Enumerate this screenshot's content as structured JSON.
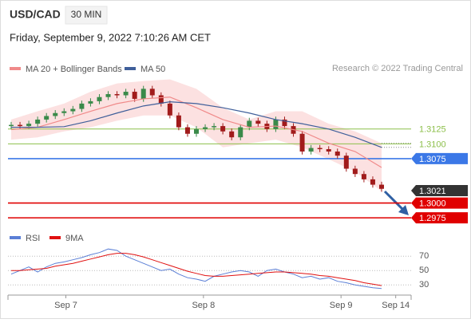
{
  "chart_data": {
    "type": "candlestick",
    "symbol": "USD/CAD",
    "timeframe": "30 MIN",
    "subtitle": "Friday, September 9, 2022 7:10:26 AM CET",
    "credit": "Research © 2022 Trading Central",
    "up_color": "#3a8a4a",
    "down_color": "#a11b1b",
    "ylim": [
      1.2959,
      1.3215
    ],
    "open": [
      1.313,
      1.3132,
      1.313,
      1.3134,
      1.3141,
      1.3147,
      1.3152,
      1.3155,
      1.3159,
      1.3168,
      1.3172,
      1.3179,
      1.3184,
      1.3182,
      1.3188,
      1.3176,
      1.3193,
      1.3182,
      1.3168,
      1.3148,
      1.3128,
      1.3117,
      1.3125,
      1.3128,
      1.313,
      1.3121,
      1.3111,
      1.3128,
      1.3139,
      1.3134,
      1.3125,
      1.3141,
      1.313,
      1.3117,
      1.3087,
      1.3093,
      1.3091,
      1.3087,
      1.308,
      1.3058,
      1.3049,
      1.304,
      1.3031
    ],
    "high": [
      1.3137,
      1.3137,
      1.3139,
      1.3146,
      1.3152,
      1.3157,
      1.316,
      1.3164,
      1.3173,
      1.3177,
      1.3184,
      1.3189,
      1.3189,
      1.3193,
      1.3193,
      1.3198,
      1.3198,
      1.3187,
      1.3173,
      1.3153,
      1.3133,
      1.313,
      1.3133,
      1.3135,
      1.3135,
      1.3126,
      1.3133,
      1.3144,
      1.3144,
      1.3139,
      1.3146,
      1.3146,
      1.3135,
      1.3122,
      1.3098,
      1.3098,
      1.3096,
      1.3092,
      1.3085,
      1.3063,
      1.3054,
      1.3045,
      1.3036
    ],
    "low": [
      1.3125,
      1.3125,
      1.3125,
      1.3129,
      1.3136,
      1.3142,
      1.3147,
      1.315,
      1.3154,
      1.3163,
      1.3167,
      1.3174,
      1.3177,
      1.3177,
      1.3171,
      1.3171,
      1.3177,
      1.3163,
      1.3143,
      1.3123,
      1.3112,
      1.3112,
      1.312,
      1.3123,
      1.3116,
      1.3106,
      1.3106,
      1.3123,
      1.3129,
      1.312,
      1.312,
      1.3125,
      1.3112,
      1.3082,
      1.3082,
      1.3086,
      1.3082,
      1.3075,
      1.3053,
      1.3044,
      1.3035,
      1.3026,
      1.3019
    ],
    "close": [
      1.3132,
      1.313,
      1.3134,
      1.3141,
      1.3147,
      1.3152,
      1.3155,
      1.3159,
      1.3168,
      1.3172,
      1.3179,
      1.3184,
      1.3182,
      1.3188,
      1.3176,
      1.3193,
      1.3182,
      1.3168,
      1.3148,
      1.3128,
      1.3117,
      1.3125,
      1.3128,
      1.313,
      1.3121,
      1.3111,
      1.3128,
      1.3139,
      1.3134,
      1.3125,
      1.3141,
      1.313,
      1.3117,
      1.3087,
      1.3093,
      1.3091,
      1.3087,
      1.308,
      1.3058,
      1.3049,
      1.304,
      1.3031,
      1.3024
    ],
    "overlay_x": [
      0,
      3,
      6,
      9,
      12,
      15,
      18,
      21,
      24,
      27,
      30,
      33,
      36,
      39,
      42
    ],
    "overlays": [
      {
        "name": "MA 20 + Bollinger Bands",
        "color": "#f08a8a",
        "values": [
          1.3124,
          1.3128,
          1.3141,
          1.3155,
          1.3168,
          1.3176,
          1.3179,
          1.3161,
          1.3141,
          1.3128,
          1.313,
          1.3121,
          1.3101,
          1.3087,
          1.306
        ],
        "upper": [
          1.3141,
          1.3155,
          1.3168,
          1.3188,
          1.3202,
          1.3206,
          1.3209,
          1.3193,
          1.3161,
          1.3141,
          1.3155,
          1.3155,
          1.3134,
          1.3121,
          1.3101
        ],
        "lower": [
          1.3107,
          1.3111,
          1.3121,
          1.3128,
          1.3139,
          1.3148,
          1.3148,
          1.3128,
          1.3094,
          1.3101,
          1.3107,
          1.3094,
          1.3074,
          1.3053,
          1.302
        ]
      },
      {
        "name": "MA 50",
        "color": "#3f5f9a",
        "values": [
          1.3128,
          1.3128,
          1.3129,
          1.3139,
          1.3152,
          1.3164,
          1.3171,
          1.3168,
          1.3161,
          1.3152,
          1.3141,
          1.3134,
          1.3125,
          1.3111,
          1.3094
        ]
      }
    ],
    "levels": [
      {
        "value": 1.3125,
        "color": "#8cbf4a",
        "boxed": false
      },
      {
        "value": 1.31,
        "label": "1.3100",
        "color": "#8cbf4a",
        "boxed": false
      },
      {
        "value": 1.3075,
        "color": "#3b78e7",
        "boxed": true
      },
      {
        "value": 1.3021,
        "color": "#333333",
        "boxed": true,
        "line": false
      },
      {
        "value": 1.3,
        "label": "1.3000",
        "color": "#e00000",
        "boxed": true
      },
      {
        "value": 1.2975,
        "color": "#e00000",
        "boxed": true
      }
    ],
    "xticks": [
      {
        "value": 6.2,
        "label": "Sep 7"
      },
      {
        "value": 21.8,
        "label": "Sep 8"
      },
      {
        "value": 37.4,
        "label": "Sep 9"
      },
      {
        "value": 43.6,
        "label": "Sep 14"
      }
    ],
    "rsi": {
      "ylim": [
        18,
        88
      ],
      "yticks": [
        70,
        50,
        30
      ],
      "series": [
        {
          "name": "RSI",
          "color": "#5b7fd6",
          "values": [
            45,
            50,
            55,
            48,
            55,
            60,
            62,
            65,
            68,
            72,
            75,
            80,
            78,
            70,
            65,
            60,
            55,
            50,
            52,
            45,
            40,
            38,
            35,
            42,
            45,
            48,
            50,
            48,
            42,
            50,
            52,
            48,
            45,
            40,
            42,
            38,
            40,
            35,
            33,
            30,
            28,
            26,
            25
          ]
        },
        {
          "name": "9MA",
          "color": "#e01010",
          "values": [
            50,
            50,
            51,
            52,
            53,
            56,
            58,
            60,
            63,
            66,
            69,
            72,
            74,
            74,
            72,
            69,
            65,
            61,
            57,
            53,
            49,
            46,
            43,
            42,
            42,
            43,
            44,
            45,
            46,
            47,
            48,
            48,
            47,
            46,
            45,
            43,
            42,
            40,
            38,
            36,
            33,
            31,
            29
          ]
        }
      ]
    }
  }
}
